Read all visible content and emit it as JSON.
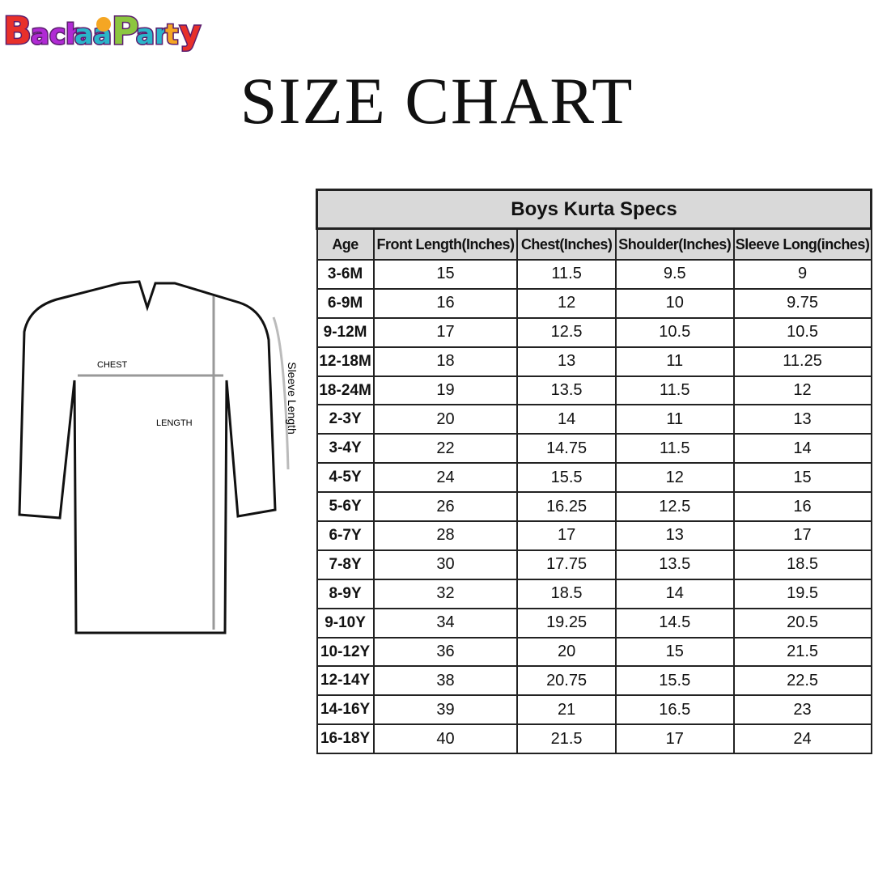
{
  "logo": {
    "text": "BachaaParty",
    "colors": [
      "#e8302a",
      "#b02ad4",
      "#2ab5c9",
      "#f5a623",
      "#8cc63f",
      "#5b1d6e"
    ]
  },
  "title": "SIZE CHART",
  "diagram": {
    "chest_label": "CHEST",
    "length_label": "LENGTH",
    "sleeve_label": "Sleeve Length"
  },
  "table": {
    "caption": "Boys Kurta Specs",
    "headers": [
      "Age",
      "Front Length(Inches)",
      "Chest(Inches)",
      "Shoulder(Inches)",
      "Sleeve Long(inches)"
    ],
    "rows": [
      [
        "3-6M",
        "15",
        "11.5",
        "9.5",
        "9"
      ],
      [
        "6-9M",
        "16",
        "12",
        "10",
        "9.75"
      ],
      [
        "9-12M",
        "17",
        "12.5",
        "10.5",
        "10.5"
      ],
      [
        "12-18M",
        "18",
        "13",
        "11",
        "11.25"
      ],
      [
        "18-24M",
        "19",
        "13.5",
        "11.5",
        "12"
      ],
      [
        "2-3Y",
        "20",
        "14",
        "11",
        "13"
      ],
      [
        "3-4Y",
        "22",
        "14.75",
        "11.5",
        "14"
      ],
      [
        "4-5Y",
        "24",
        "15.5",
        "12",
        "15"
      ],
      [
        "5-6Y",
        "26",
        "16.25",
        "12.5",
        "16"
      ],
      [
        "6-7Y",
        "28",
        "17",
        "13",
        "17"
      ],
      [
        "7-8Y",
        "30",
        "17.75",
        "13.5",
        "18.5"
      ],
      [
        "8-9Y",
        "32",
        "18.5",
        "14",
        "19.5"
      ],
      [
        "9-10Y",
        "34",
        "19.25",
        "14.5",
        "20.5"
      ],
      [
        "10-12Y",
        "36",
        "20",
        "15",
        "21.5"
      ],
      [
        "12-14Y",
        "38",
        "20.75",
        "15.5",
        "22.5"
      ],
      [
        "14-16Y",
        "39",
        "21",
        "16.5",
        "23"
      ],
      [
        "16-18Y",
        "40",
        "21.5",
        "17",
        "24"
      ]
    ]
  }
}
